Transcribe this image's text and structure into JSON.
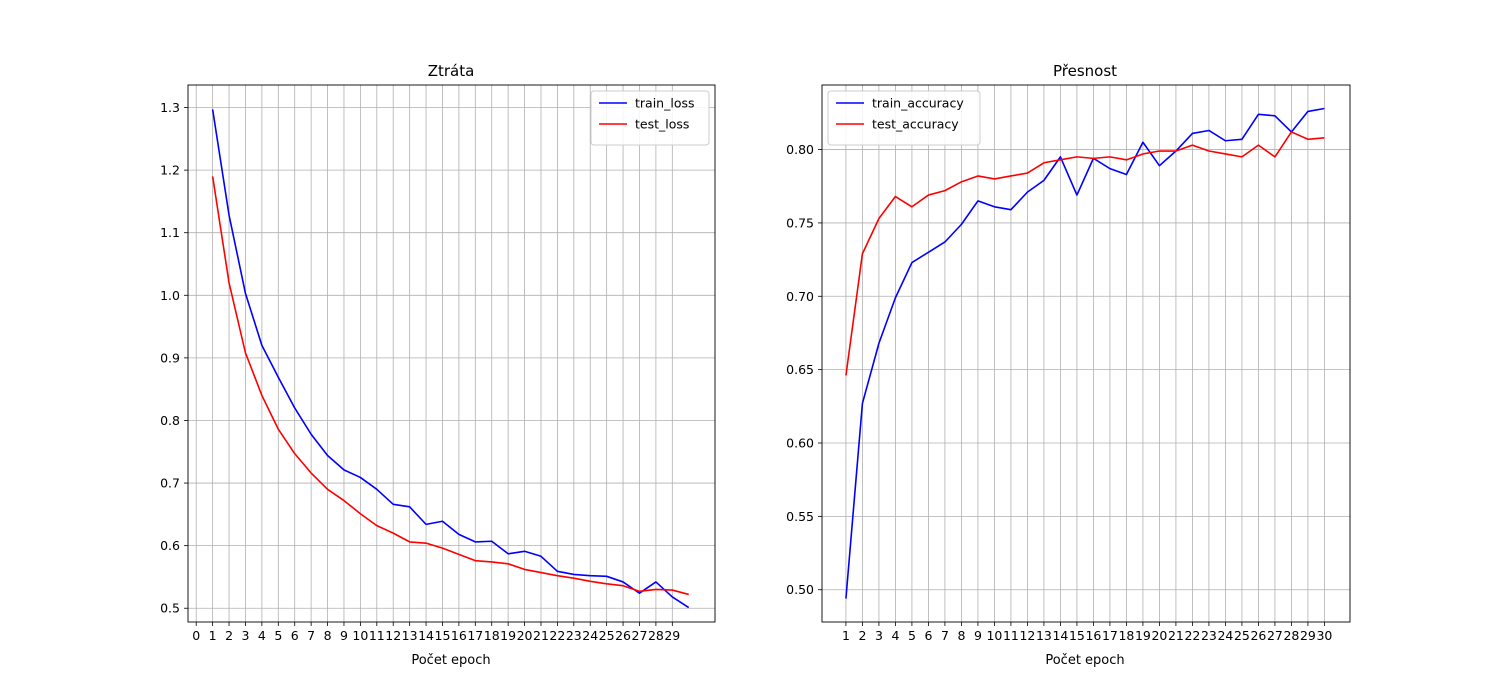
{
  "chart_data": [
    {
      "type": "line",
      "title": "Ztráta",
      "xlabel": "Počet epoch",
      "ylabel": "",
      "xlim": [
        -0.5,
        31.6
      ],
      "ylim": [
        0.478,
        1.336
      ],
      "xticks": [
        0,
        1,
        2,
        3,
        4,
        5,
        6,
        7,
        8,
        9,
        10,
        11,
        12,
        13,
        14,
        15,
        16,
        17,
        18,
        19,
        20,
        21,
        22,
        23,
        24,
        25,
        26,
        27,
        28,
        29
      ],
      "yticks": [
        0.5,
        0.6,
        0.7,
        0.8,
        0.9,
        1.0,
        1.1,
        1.2,
        1.3
      ],
      "ytick_labels": [
        "0.5",
        "0.6",
        "0.7",
        "0.8",
        "0.9",
        "1.0",
        "1.1",
        "1.2",
        "1.3"
      ],
      "grid": true,
      "legend_position": "top-right",
      "x": [
        1,
        2,
        3,
        4,
        5,
        6,
        7,
        8,
        9,
        10,
        11,
        12,
        13,
        14,
        15,
        16,
        17,
        18,
        19,
        20,
        21,
        22,
        23,
        24,
        25,
        26,
        27,
        28,
        29,
        30
      ],
      "series": [
        {
          "name": "train_loss",
          "color": "#0000ff",
          "values": [
            1.297,
            1.128,
            1.003,
            0.92,
            0.869,
            0.82,
            0.778,
            0.744,
            0.721,
            0.709,
            0.69,
            0.666,
            0.662,
            0.634,
            0.639,
            0.618,
            0.606,
            0.607,
            0.587,
            0.591,
            0.583,
            0.559,
            0.554,
            0.552,
            0.551,
            0.542,
            0.524,
            0.542,
            0.518,
            0.501
          ]
        },
        {
          "name": "test_loss",
          "color": "#ff0000",
          "values": [
            1.19,
            1.02,
            0.908,
            0.84,
            0.786,
            0.747,
            0.716,
            0.69,
            0.672,
            0.651,
            0.632,
            0.62,
            0.606,
            0.604,
            0.596,
            0.586,
            0.576,
            0.574,
            0.571,
            0.562,
            0.557,
            0.552,
            0.548,
            0.543,
            0.539,
            0.536,
            0.527,
            0.53,
            0.529,
            0.522
          ]
        }
      ]
    },
    {
      "type": "line",
      "title": "Přesnost",
      "xlabel": "Počet epoch",
      "ylabel": "",
      "xlim": [
        -0.45,
        31.55
      ],
      "ylim": [
        0.478,
        0.844
      ],
      "xticks": [
        1,
        2,
        3,
        4,
        5,
        6,
        7,
        8,
        9,
        10,
        11,
        12,
        13,
        14,
        15,
        16,
        17,
        18,
        19,
        20,
        21,
        22,
        23,
        24,
        25,
        26,
        27,
        28,
        29,
        30
      ],
      "yticks": [
        0.5,
        0.55,
        0.6,
        0.65,
        0.7,
        0.75,
        0.8
      ],
      "ytick_labels": [
        "0.50",
        "0.55",
        "0.60",
        "0.65",
        "0.70",
        "0.75",
        "0.80"
      ],
      "grid": true,
      "legend_position": "top-left",
      "x": [
        1,
        2,
        3,
        4,
        5,
        6,
        7,
        8,
        9,
        10,
        11,
        12,
        13,
        14,
        15,
        16,
        17,
        18,
        19,
        20,
        21,
        22,
        23,
        24,
        25,
        26,
        27,
        28,
        29,
        30
      ],
      "series": [
        {
          "name": "train_accuracy",
          "color": "#0000ff",
          "values": [
            0.494,
            0.627,
            0.668,
            0.699,
            0.723,
            0.73,
            0.737,
            0.749,
            0.765,
            0.761,
            0.759,
            0.771,
            0.779,
            0.795,
            0.769,
            0.794,
            0.787,
            0.783,
            0.805,
            0.789,
            0.799,
            0.811,
            0.813,
            0.806,
            0.807,
            0.824,
            0.823,
            0.812,
            0.826,
            0.828
          ]
        },
        {
          "name": "test_accuracy",
          "color": "#ff0000",
          "values": [
            0.646,
            0.729,
            0.753,
            0.768,
            0.761,
            0.769,
            0.772,
            0.778,
            0.782,
            0.78,
            0.782,
            0.784,
            0.791,
            0.793,
            0.795,
            0.794,
            0.795,
            0.793,
            0.797,
            0.799,
            0.799,
            0.803,
            0.799,
            0.797,
            0.795,
            0.803,
            0.795,
            0.812,
            0.807,
            0.808
          ]
        }
      ]
    }
  ]
}
